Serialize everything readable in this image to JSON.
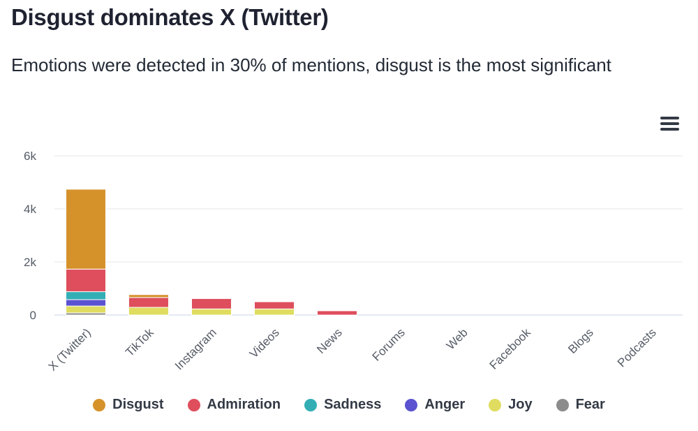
{
  "title": "Disgust dominates X (Twitter)",
  "subtitle": "Emotions were detected in 30% of mentions, disgust is the most significant",
  "menu_icon": "hamburger-menu-icon",
  "chart_data": {
    "type": "bar",
    "stacked": true,
    "categories": [
      "X (Twitter)",
      "TikTok",
      "Instagram",
      "Videos",
      "News",
      "Forums",
      "Web",
      "Facebook",
      "Blogs",
      "Podcasts"
    ],
    "y_ticks": [
      {
        "value": 0,
        "label": "0"
      },
      {
        "value": 2000,
        "label": "2k"
      },
      {
        "value": 4000,
        "label": "4k"
      },
      {
        "value": 6000,
        "label": "6k"
      }
    ],
    "ylim": [
      0,
      6000
    ],
    "grid": true,
    "legend_position": "bottom",
    "series": [
      {
        "name": "Fear",
        "color": "#8c8c8c",
        "values": [
          80,
          0,
          0,
          0,
          0,
          0,
          0,
          0,
          0,
          0
        ]
      },
      {
        "name": "Joy",
        "color": "#e0dc60",
        "values": [
          260,
          290,
          230,
          230,
          0,
          0,
          0,
          0,
          0,
          0
        ]
      },
      {
        "name": "Anger",
        "color": "#5a52d0",
        "values": [
          240,
          0,
          0,
          0,
          0,
          0,
          0,
          0,
          0,
          0
        ]
      },
      {
        "name": "Sadness",
        "color": "#33aeb5",
        "values": [
          300,
          0,
          0,
          0,
          0,
          0,
          0,
          0,
          0,
          0
        ]
      },
      {
        "name": "Admiration",
        "color": "#de4e5c",
        "values": [
          850,
          370,
          390,
          270,
          160,
          0,
          0,
          0,
          0,
          0
        ]
      },
      {
        "name": "Disgust",
        "color": "#d5922b",
        "values": [
          3010,
          110,
          0,
          0,
          0,
          0,
          0,
          0,
          0,
          0
        ]
      }
    ]
  },
  "legend": [
    {
      "name": "Disgust",
      "color": "#d5922b"
    },
    {
      "name": "Admiration",
      "color": "#de4e5c"
    },
    {
      "name": "Sadness",
      "color": "#33aeb5"
    },
    {
      "name": "Anger",
      "color": "#5a52d0"
    },
    {
      "name": "Joy",
      "color": "#e0dc60"
    },
    {
      "name": "Fear",
      "color": "#8c8c8c"
    }
  ]
}
